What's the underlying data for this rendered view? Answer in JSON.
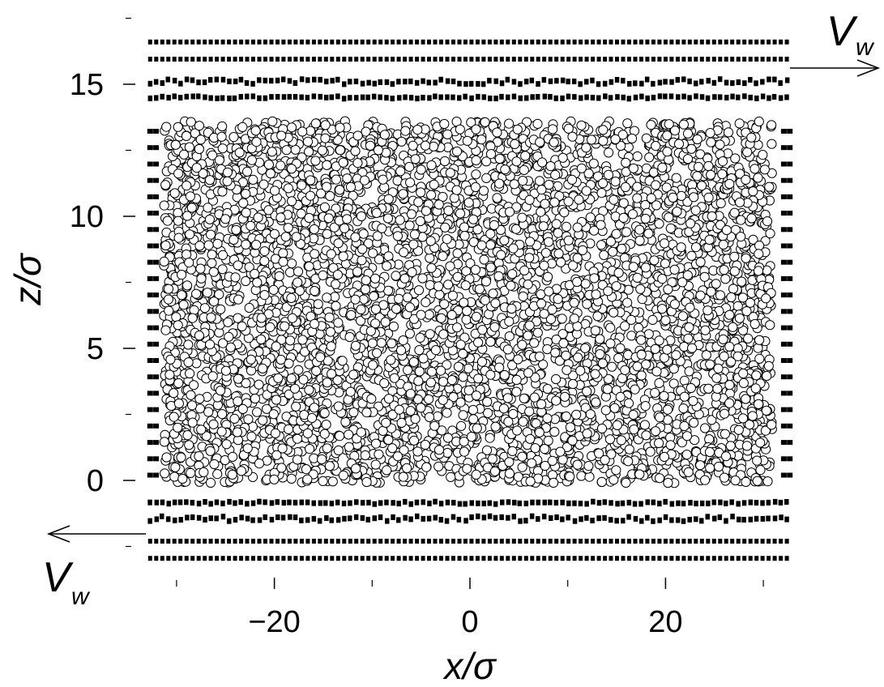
{
  "chart_data": {
    "type": "scatter",
    "xlabel": "x/σ",
    "ylabel": "z/σ",
    "xlim": [
      -33,
      33
    ],
    "ylim": [
      -3.1,
      17.6
    ],
    "x_ticks": [
      -20,
      0,
      20
    ],
    "x_minor_ticks": [
      -30,
      -10,
      10,
      30
    ],
    "y_ticks": [
      0,
      5,
      10,
      15
    ],
    "y_minor_ticks": [
      -2.5,
      2.5,
      7.5,
      12.5,
      17.5
    ],
    "grid": false,
    "series": [
      {
        "marker": "open-circle",
        "color": "#000000",
        "x_range": [
          -31.3,
          30.9
        ],
        "z_range": [
          -0.1,
          13.6
        ],
        "count": 5000
      },
      {
        "marker": "filled-square",
        "color": "#000000",
        "rows_z": [
          -0.85,
          -1.45,
          -2.3,
          -2.95
        ],
        "x_range": [
          -32.8,
          32.8
        ]
      },
      {
        "marker": "filled-square",
        "color": "#000000",
        "rows_z": [
          14.5,
          15.1,
          15.95,
          16.6
        ],
        "x_range": [
          -32.8,
          32.8
        ]
      },
      {
        "marker": "filled-square",
        "color": "#000000",
        "columns_x": [
          -32.7,
          -32.1,
          32.1,
          32.7
        ],
        "z_range": [
          0.2,
          13.4
        ]
      }
    ],
    "annotations": [
      {
        "text": "V",
        "subscript": "w",
        "position": "top-right",
        "arrow": "right"
      },
      {
        "text": "V",
        "subscript": "w",
        "position": "bottom-left",
        "arrow": "left"
      }
    ]
  }
}
